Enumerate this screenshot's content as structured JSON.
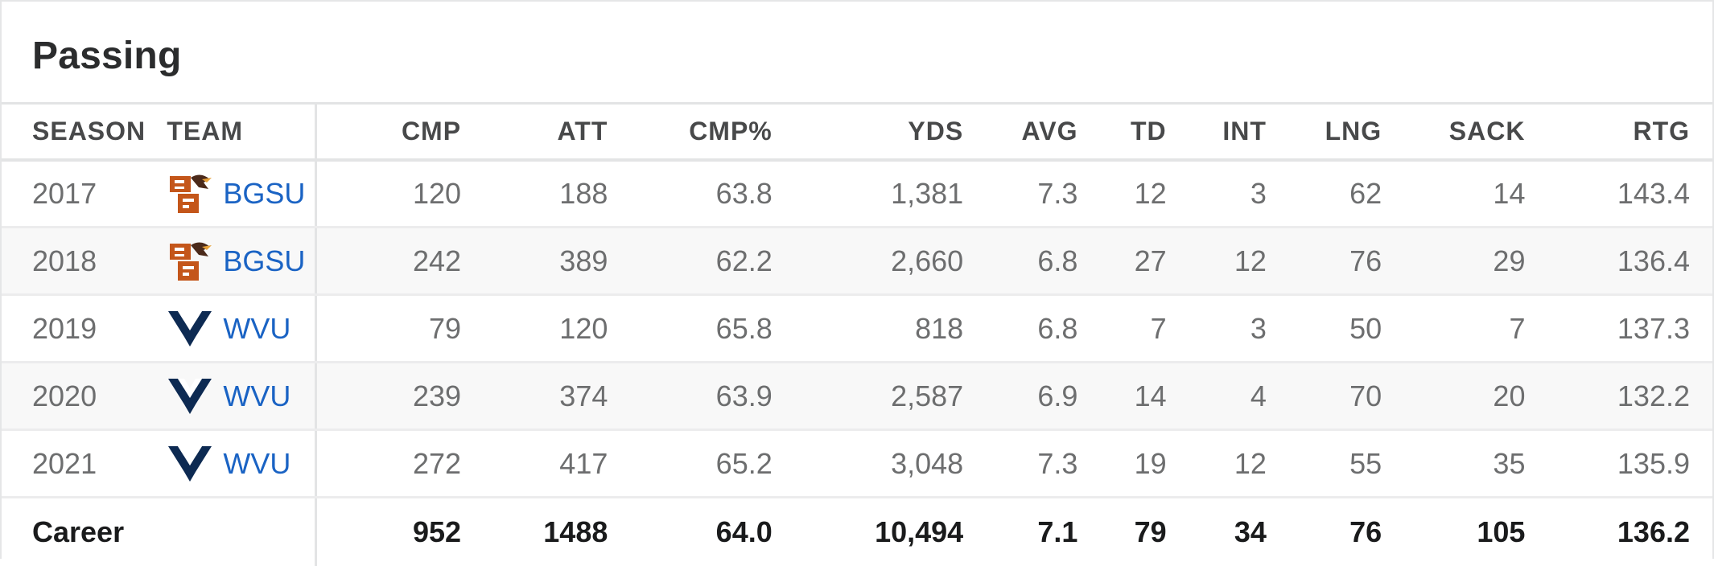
{
  "section_title": "Passing",
  "columns": [
    "SEASON",
    "TEAM",
    "CMP",
    "ATT",
    "CMP%",
    "YDS",
    "AVG",
    "TD",
    "INT",
    "LNG",
    "SACK",
    "RTG"
  ],
  "rows": [
    {
      "season": "2017",
      "team": "BGSU",
      "logo": "bgsu-logo-icon",
      "cmp": "120",
      "att": "188",
      "cmp_pct": "63.8",
      "yds": "1,381",
      "avg": "7.3",
      "td": "12",
      "int": "3",
      "lng": "62",
      "sack": "14",
      "rtg": "143.4"
    },
    {
      "season": "2018",
      "team": "BGSU",
      "logo": "bgsu-logo-icon",
      "cmp": "242",
      "att": "389",
      "cmp_pct": "62.2",
      "yds": "2,660",
      "avg": "6.8",
      "td": "27",
      "int": "12",
      "lng": "76",
      "sack": "29",
      "rtg": "136.4"
    },
    {
      "season": "2019",
      "team": "WVU",
      "logo": "wvu-logo-icon",
      "cmp": "79",
      "att": "120",
      "cmp_pct": "65.8",
      "yds": "818",
      "avg": "6.8",
      "td": "7",
      "int": "3",
      "lng": "50",
      "sack": "7",
      "rtg": "137.3"
    },
    {
      "season": "2020",
      "team": "WVU",
      "logo": "wvu-logo-icon",
      "cmp": "239",
      "att": "374",
      "cmp_pct": "63.9",
      "yds": "2,587",
      "avg": "6.9",
      "td": "14",
      "int": "4",
      "lng": "70",
      "sack": "20",
      "rtg": "132.2"
    },
    {
      "season": "2021",
      "team": "WVU",
      "logo": "wvu-logo-icon",
      "cmp": "272",
      "att": "417",
      "cmp_pct": "65.2",
      "yds": "3,048",
      "avg": "7.3",
      "td": "19",
      "int": "12",
      "lng": "55",
      "sack": "35",
      "rtg": "135.9"
    }
  ],
  "career": {
    "label": "Career",
    "cmp": "952",
    "att": "1488",
    "cmp_pct": "64.0",
    "yds": "10,494",
    "avg": "7.1",
    "td": "79",
    "int": "34",
    "lng": "76",
    "sack": "105",
    "rtg": "136.2"
  },
  "colors": {
    "link": "#1a63c4",
    "bgsu_orange": "#c4561a",
    "bgsu_brown": "#4b2a1a",
    "wvu_navy": "#0d2a52"
  }
}
